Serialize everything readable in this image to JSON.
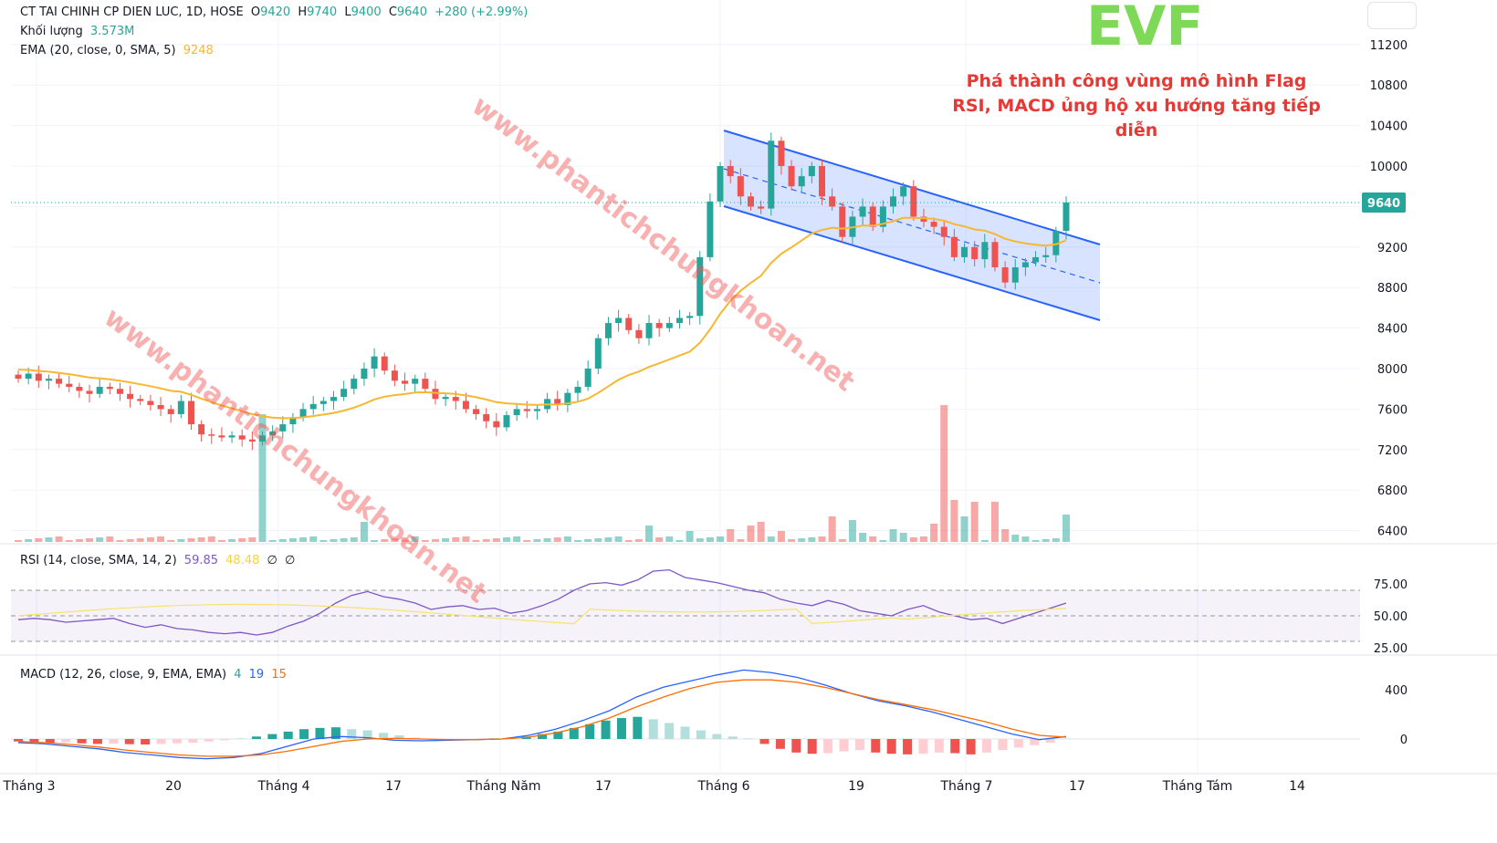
{
  "header": {
    "symbol": "CT TAI CHINH CP DIEN LUC, 1D, HOSE",
    "o_label": "O",
    "o_value": "9420",
    "h_label": "H",
    "h_value": "9740",
    "l_label": "L",
    "l_value": "9400",
    "c_label": "C",
    "c_value": "9640",
    "change": "+280 (+2.99%)",
    "volume_label": "Khối lượng",
    "volume_value": "3.573M",
    "ema_label": "EMA (20, close, 0, SMA, 5)",
    "ema_value": "9248"
  },
  "annotations": {
    "ticker": "EVF",
    "line1": "Phá thành công vùng mô hình Flag",
    "line2": "RSI, MACD ủng hộ xu hướng tăng tiếp diễn",
    "watermark": "www.phantichchungkhoan.net"
  },
  "price_axis": {
    "ticks": [
      "11200",
      "10800",
      "10400",
      "10000",
      "9600",
      "9200",
      "8800",
      "8400",
      "8000",
      "7600",
      "7200",
      "6800",
      "6400"
    ],
    "last_price": "9640"
  },
  "rsi": {
    "label": "RSI (14, close, SMA, 14, 2)",
    "value": "59.85",
    "sma": "48.48",
    "extra1": "∅",
    "extra2": "∅",
    "ticks": [
      "75.00",
      "50.00",
      "25.00"
    ]
  },
  "macd": {
    "label": "MACD (12, 26, close, 9, EMA, EMA)",
    "hist": "4",
    "macd": "19",
    "signal": "15",
    "ticks": [
      "400",
      "0"
    ]
  },
  "time_axis": [
    "Tháng 3",
    "20",
    "Tháng 4",
    "17",
    "Tháng Năm",
    "17",
    "Tháng 6",
    "19",
    "Tháng 7",
    "17",
    "Tháng Tám",
    "14"
  ],
  "colors": {
    "up": "#26a69a",
    "down": "#ef5350",
    "ema": "#f7b731",
    "channel": "#2962ff",
    "annotation": "#e53935",
    "ticker": "#7ed957",
    "rsi_line": "#7e57c2",
    "macd_line": "#2962ff",
    "signal_line": "#ff6d00"
  },
  "chart_data": {
    "type": "candlestick",
    "closes": [
      7900,
      7950,
      7880,
      7900,
      7850,
      7820,
      7780,
      7750,
      7820,
      7800,
      7750,
      7700,
      7680,
      7640,
      7600,
      7550,
      7680,
      7450,
      7350,
      7340,
      7320,
      7340,
      7300,
      7280,
      7340,
      7380,
      7450,
      7520,
      7600,
      7650,
      7680,
      7720,
      7800,
      7900,
      8000,
      8120,
      7980,
      7880,
      7850,
      7900,
      7800,
      7700,
      7720,
      7680,
      7600,
      7550,
      7480,
      7420,
      7540,
      7600,
      7580,
      7600,
      7700,
      7640,
      7760,
      7820,
      8000,
      8300,
      8450,
      8500,
      8380,
      8300,
      8450,
      8400,
      8450,
      8500,
      8520,
      9100,
      9650,
      10000,
      9900,
      9700,
      9600,
      9580,
      10250,
      10000,
      9800,
      9900,
      10000,
      9700,
      9600,
      9300,
      9500,
      9600,
      9400,
      9600,
      9700,
      9800,
      9500,
      9450,
      9400,
      9300,
      9100,
      9200,
      9080,
      9250,
      9000,
      8850,
      9000,
      9050,
      9100,
      9120,
      9360,
      9640
    ]
  }
}
